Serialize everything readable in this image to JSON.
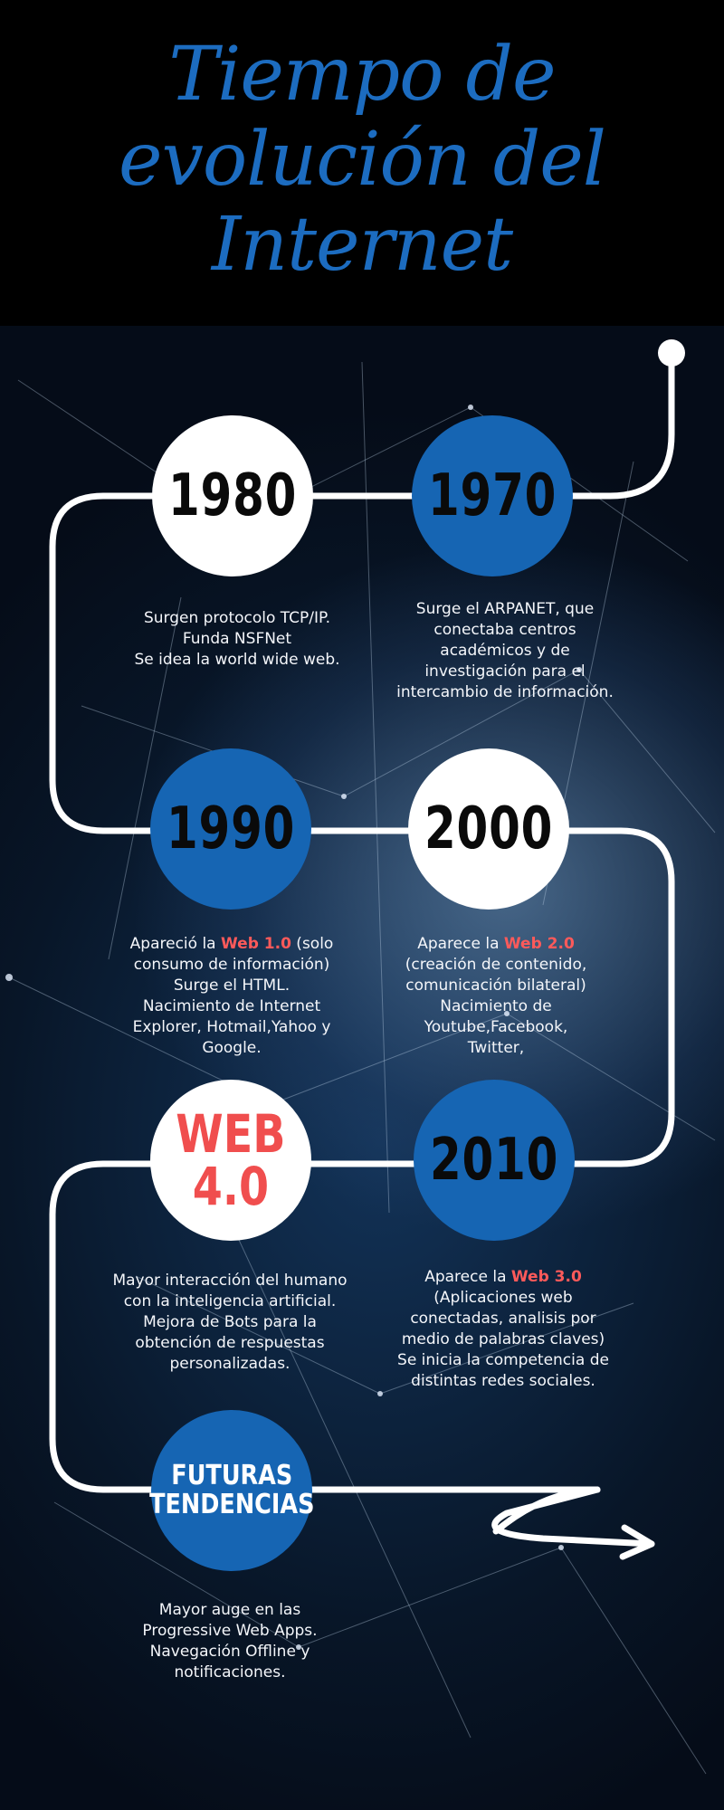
{
  "header": {
    "title_lines": [
      "Tiempo de",
      "evolución del",
      "Internet"
    ]
  },
  "colors": {
    "accent_blue": "#1665b3",
    "highlight_red": "#ff5a5a",
    "title_blue": "#1c6cc0"
  },
  "milestones": {
    "m1980": {
      "label": "1980",
      "lines": [
        "Surgen protocolo TCP/IP.",
        "Funda NSFNet",
        "Se idea la world wide web."
      ]
    },
    "m1970": {
      "label": "1970",
      "lines": [
        "Surge el ARPANET,  que",
        "conectaba centros",
        "académicos y de",
        "investigación para el",
        "intercambio de información."
      ]
    },
    "m1990": {
      "label": "1990",
      "pre": "Apareció la ",
      "highlight": "Web 1.0",
      "post": " (solo",
      "lines": [
        "consumo de información)",
        "Surge el HTML.",
        "Nacimiento de Internet",
        "Explorer, Hotmail,Yahoo y",
        "Google."
      ]
    },
    "m2000": {
      "label": "2000",
      "pre": "Aparece la ",
      "highlight": "Web 2.0",
      "lines": [
        "(creación de contenido,",
        "comunicación bilateral)",
        "Nacimiento de",
        "Youtube,Facebook,",
        "Twitter,"
      ]
    },
    "web40": {
      "label_line1": "WEB",
      "label_line2": "4.0",
      "lines": [
        "Mayor interacción del humano",
        "con la inteligencia artificial.",
        "Mejora de Bots para la",
        "obtención de respuestas",
        "personalizadas."
      ]
    },
    "m2010": {
      "label": "2010",
      "pre": "Aparece la ",
      "highlight": "Web 3.0",
      "lines": [
        "(Aplicaciones web",
        "conectadas, analisis por",
        "medio de palabras claves)",
        "Se inicia la competencia de",
        "distintas redes sociales."
      ]
    },
    "futuras": {
      "label_line1": "FUTURAS",
      "label_line2": "TENDENCIAS",
      "lines": [
        "Mayor auge en  las",
        "Progressive Web Apps.",
        "Navegación Offline y",
        "notificaciones."
      ]
    }
  }
}
